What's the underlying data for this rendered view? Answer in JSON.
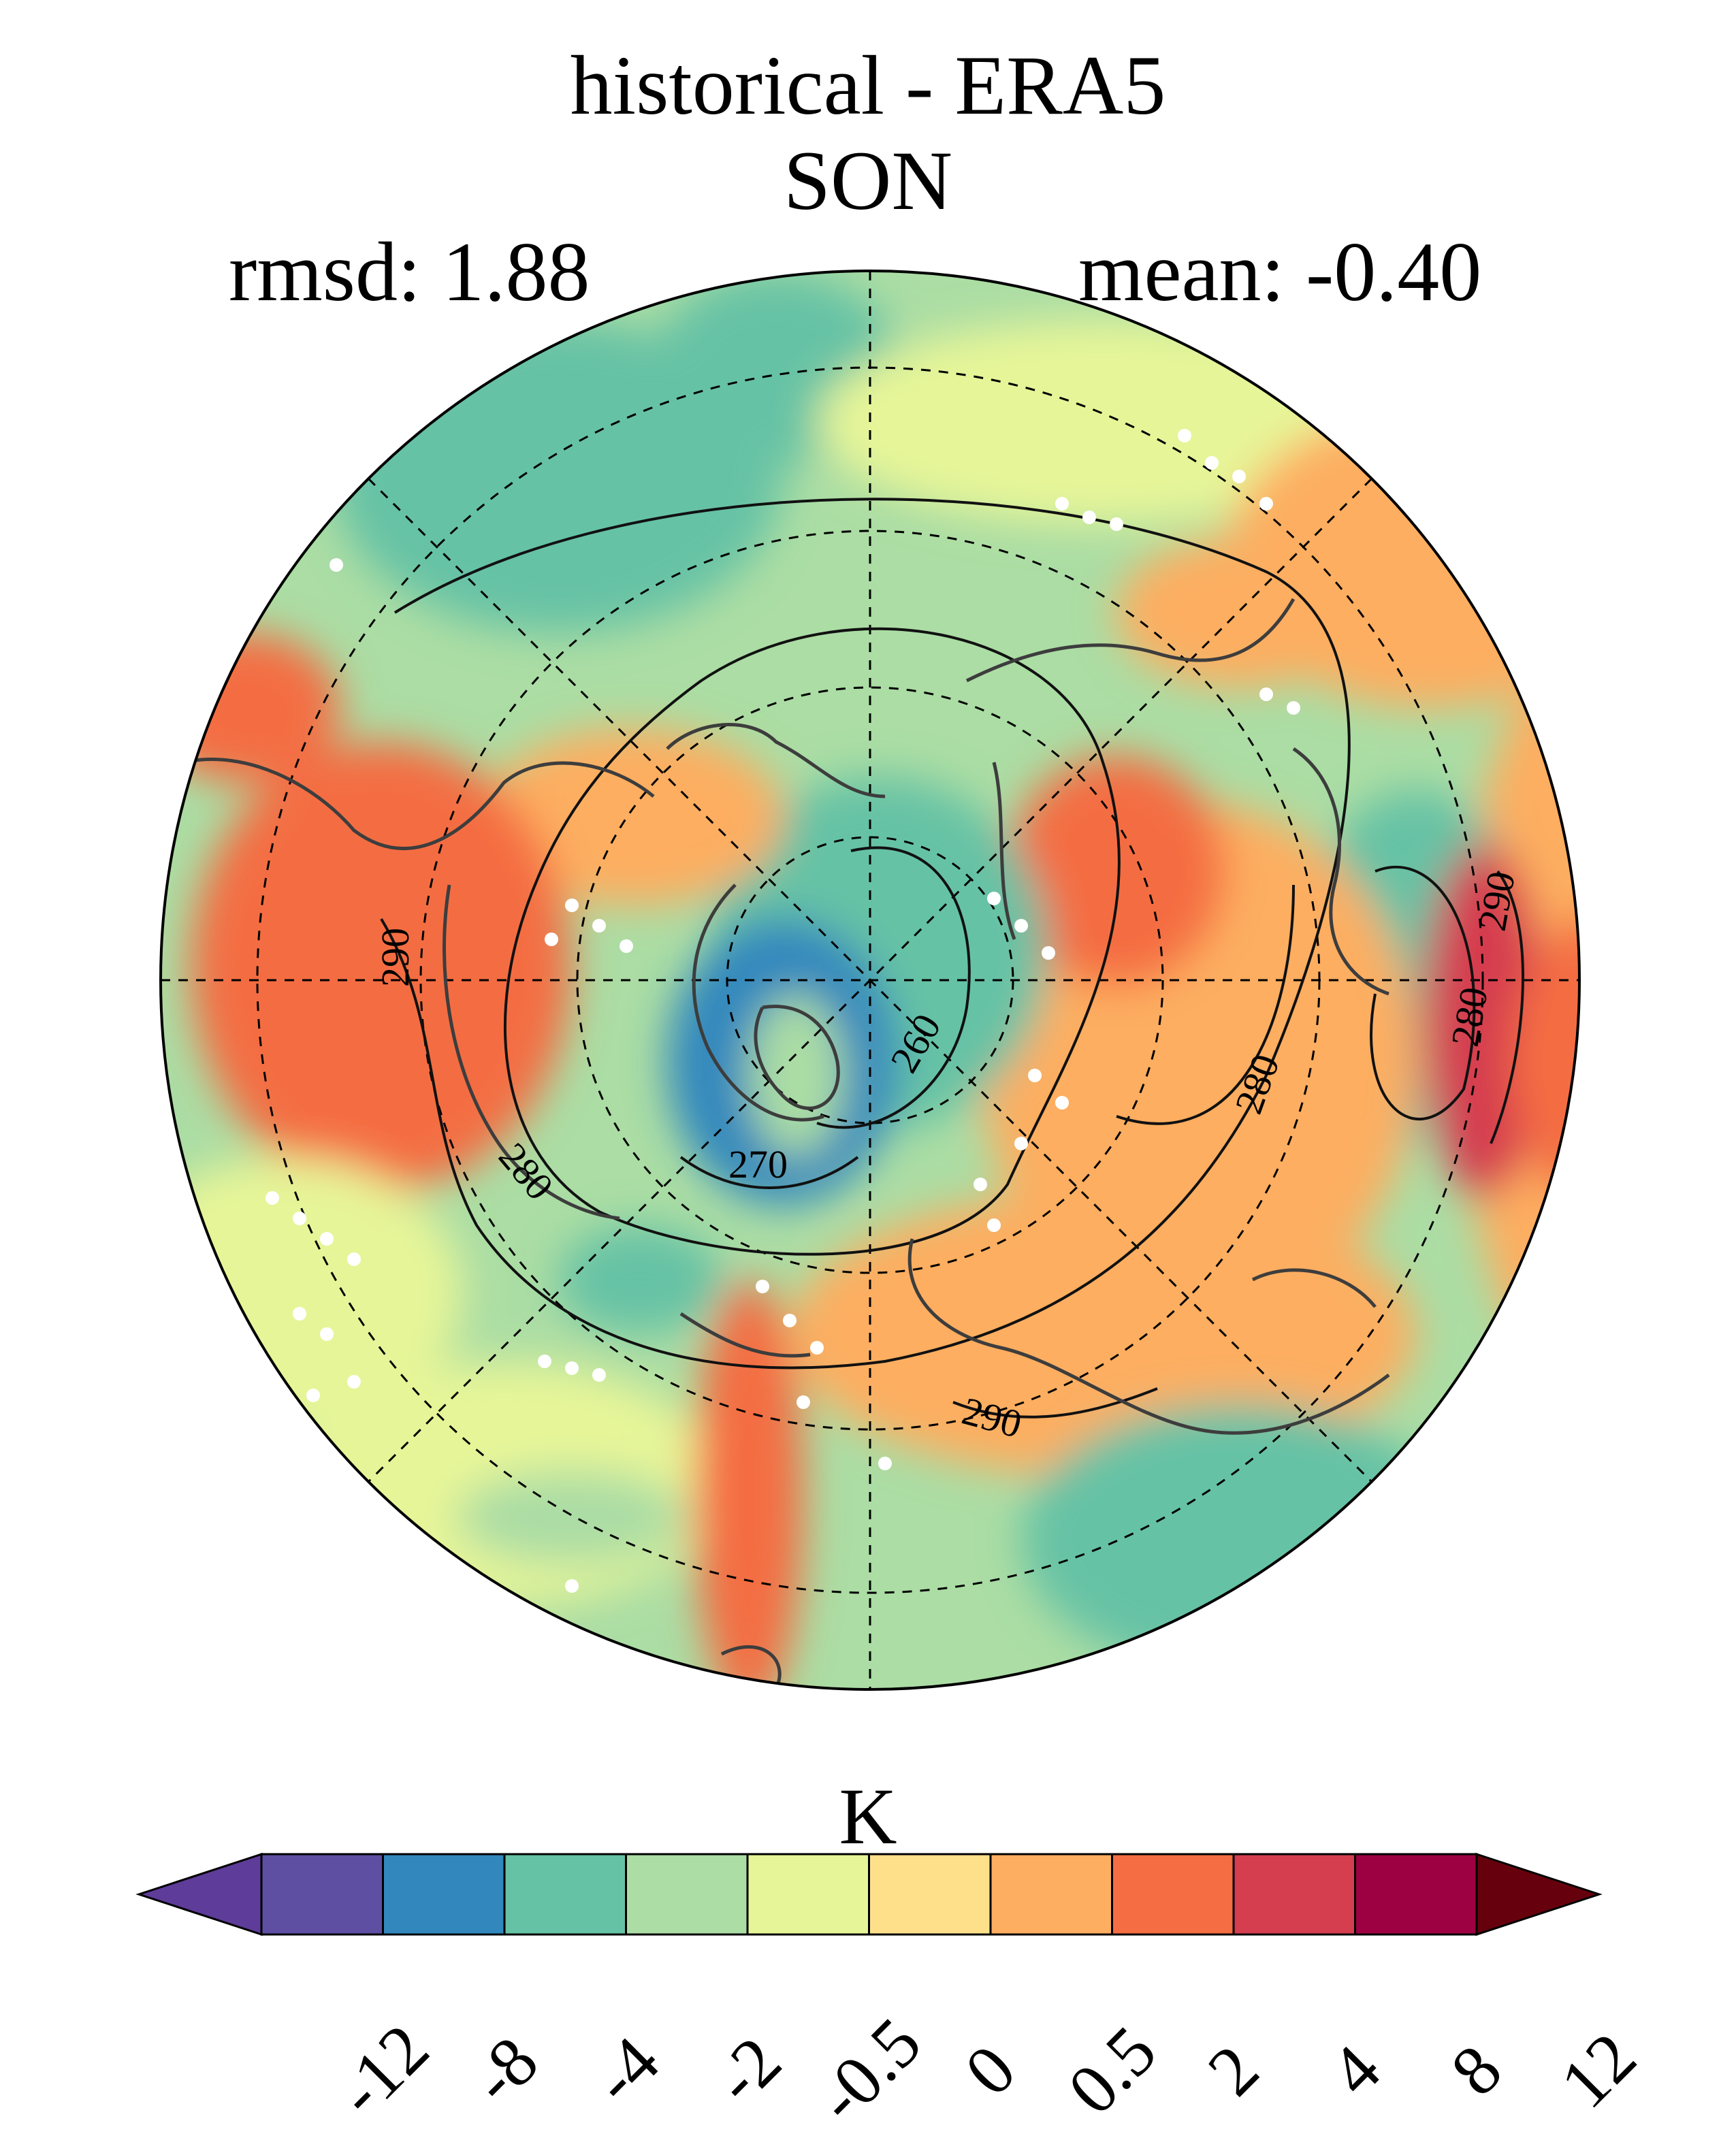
{
  "title": "historical - ERA5",
  "season": "SON",
  "stats": {
    "rmsd_label": "rmsd: 1.88",
    "mean_label": "mean: -0.40"
  },
  "map": {
    "projection": "north polar stereographic",
    "contour_labels": [
      "290",
      "280",
      "260",
      "270",
      "280",
      "280",
      "290",
      "290",
      "280"
    ],
    "field_colors_note": "filled anomaly field using colorbar palette"
  },
  "colorbar": {
    "units": "K",
    "ticks": [
      "-12",
      "-8",
      "-4",
      "-2",
      "-0.5",
      "0",
      "0.5",
      "2",
      "4",
      "8",
      "12"
    ],
    "colors": [
      "#5e3c99",
      "#5e4fa2",
      "#3288bd",
      "#66c2a5",
      "#abdda4",
      "#e6f598",
      "#fee08b",
      "#fdae61",
      "#f46d43",
      "#d53e4f",
      "#9e0142",
      "#67000d"
    ]
  }
}
